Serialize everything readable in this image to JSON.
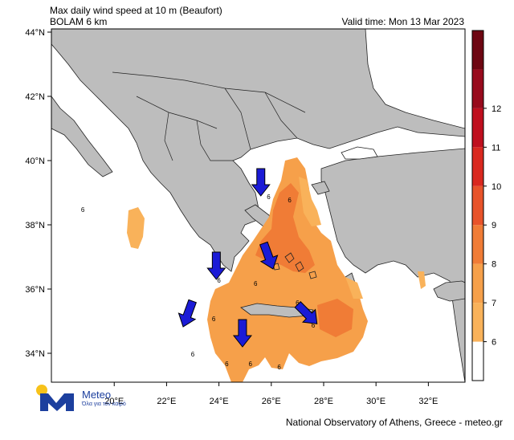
{
  "header": {
    "title": "Max daily wind speed at 10 m (Beaufort)",
    "model": "BOLAM 6 km",
    "valid_time": "Valid time: Mon 13 Mar 2023"
  },
  "footer": {
    "credit": "National Observatory of Athens, Greece - meteo.gr",
    "logo_name": "Meteo",
    "logo_tagline": "Όλα για τον καιρό"
  },
  "colors": {
    "land": "#bdbdbd",
    "sea": "#ffffff",
    "bft6": "#f9b25a",
    "bft7": "#f6a04a",
    "bft8": "#f07c36",
    "bft9": "#e8532a",
    "bft10": "#d9281f",
    "bft11": "#bf0f1e",
    "bft12": "#980a1c",
    "top": "#6e0612",
    "arrow": "#1b1bd6"
  },
  "chart_data": {
    "type": "heatmap",
    "lon_ticks": [
      "20°E",
      "22°E",
      "24°E",
      "26°E",
      "28°E",
      "30°E",
      "32°E"
    ],
    "lat_ticks": [
      "44°N",
      "42°N",
      "40°N",
      "38°N",
      "36°N",
      "34°N"
    ],
    "lon_range": [
      17.6,
      33.4
    ],
    "lat_range": [
      33.1,
      44.1
    ],
    "colorbar": {
      "levels": [
        "6",
        "7",
        "8",
        "9",
        "10",
        "11",
        "12"
      ],
      "colors": [
        "#ffffff",
        "#f9b25a",
        "#f6a04a",
        "#f07c36",
        "#e8532a",
        "#d9281f",
        "#bf0f1e",
        "#980a1c",
        "#6e0612"
      ]
    },
    "contour_labels": [
      {
        "text": "6",
        "lon": 18.8,
        "lat": 38.4
      },
      {
        "text": "6",
        "lon": 25.9,
        "lat": 38.8
      },
      {
        "text": "6",
        "lon": 26.7,
        "lat": 38.7
      },
      {
        "text": "6",
        "lon": 24.0,
        "lat": 36.2
      },
      {
        "text": "6",
        "lon": 25.4,
        "lat": 36.1
      },
      {
        "text": "6",
        "lon": 23.8,
        "lat": 35.0
      },
      {
        "text": "6",
        "lon": 23.0,
        "lat": 33.9
      },
      {
        "text": "6",
        "lon": 24.3,
        "lat": 33.6
      },
      {
        "text": "6",
        "lon": 25.2,
        "lat": 33.6
      },
      {
        "text": "6",
        "lon": 26.3,
        "lat": 33.5
      },
      {
        "text": "6",
        "lon": 27.6,
        "lat": 34.8
      },
      {
        "text": "6",
        "lon": 27.0,
        "lat": 35.5
      }
    ],
    "wind_arrows": [
      {
        "lon": 25.6,
        "lat": 39.3,
        "dir": "S"
      },
      {
        "lon": 25.9,
        "lat": 37.0,
        "dir": "SSE"
      },
      {
        "lon": 23.9,
        "lat": 36.7,
        "dir": "S"
      },
      {
        "lon": 22.8,
        "lat": 35.2,
        "dir": "SSW"
      },
      {
        "lon": 24.9,
        "lat": 34.6,
        "dir": "S"
      },
      {
        "lon": 27.4,
        "lat": 35.2,
        "dir": "SE"
      }
    ]
  }
}
